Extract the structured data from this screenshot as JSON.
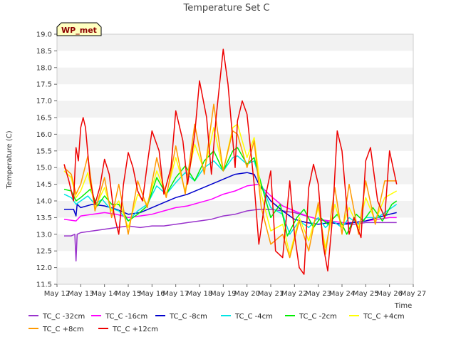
{
  "chart_data": {
    "type": "line",
    "title": "Temperature Set C",
    "xlabel": "Time",
    "ylabel": "Temperature (C)",
    "ylim": [
      11.5,
      19.0
    ],
    "xlim": [
      12,
      27
    ],
    "yticks": [
      11.5,
      12.0,
      12.5,
      13.0,
      13.5,
      14.0,
      14.5,
      15.0,
      15.5,
      16.0,
      16.5,
      17.0,
      17.5,
      18.0,
      18.5,
      19.0
    ],
    "ytick_labels": [
      "11.5",
      "12.0",
      "12.5",
      "13.0",
      "13.5",
      "14.0",
      "14.5",
      "15.0",
      "15.5",
      "16.0",
      "16.5",
      "17.0",
      "17.5",
      "18.0",
      "18.5",
      "19.0"
    ],
    "xticks": [
      12,
      13,
      14,
      15,
      16,
      17,
      18,
      19,
      20,
      21,
      22,
      23,
      24,
      25,
      26,
      27
    ],
    "xtick_labels": [
      "May 12",
      "May 13",
      "May 14",
      "May 15",
      "May 16",
      "May 17",
      "May 18",
      "May 19",
      "May 20",
      "May 21",
      "May 22",
      "May 23",
      "May 24",
      "May 25",
      "May 26",
      "May 27"
    ],
    "grid": "horizontal bands",
    "legend_position": "bottom",
    "annotation": "WP_met",
    "colors": {
      "band": "#f2f2f2",
      "annotation_fill": "#ffffc0",
      "annotation_text": "#8b0000"
    },
    "series": [
      {
        "name": "TC_C -32cm",
        "color": "#9933cc",
        "x": [
          12.3,
          12.6,
          12.75,
          12.8,
          12.85,
          13.0,
          13.5,
          14.0,
          14.5,
          15.0,
          15.5,
          16.0,
          16.5,
          17.0,
          17.5,
          18.0,
          18.5,
          19.0,
          19.5,
          20.0,
          20.5,
          21.0,
          21.5,
          22.0,
          22.5,
          23.0,
          23.5,
          24.0,
          24.5,
          25.0,
          25.5,
          26.0,
          26.3
        ],
        "y": [
          12.95,
          12.95,
          13.0,
          12.2,
          13.0,
          13.05,
          13.1,
          13.15,
          13.2,
          13.25,
          13.2,
          13.25,
          13.25,
          13.3,
          13.35,
          13.4,
          13.45,
          13.55,
          13.6,
          13.7,
          13.75,
          13.75,
          13.7,
          13.65,
          13.55,
          13.45,
          13.35,
          13.3,
          13.3,
          13.35,
          13.35,
          13.35,
          13.35
        ]
      },
      {
        "name": "TC_C -16cm",
        "color": "#ff00ff",
        "x": [
          12.3,
          12.8,
          13.0,
          13.5,
          14.0,
          14.5,
          15.0,
          15.5,
          16.0,
          16.5,
          17.0,
          17.5,
          18.0,
          18.5,
          19.0,
          19.5,
          20.0,
          20.5,
          21.0,
          21.5,
          22.0,
          22.5,
          23.0,
          23.5,
          24.0,
          24.5,
          25.0,
          25.5,
          26.0,
          26.3
        ],
        "y": [
          13.45,
          13.4,
          13.55,
          13.6,
          13.65,
          13.6,
          13.5,
          13.55,
          13.6,
          13.7,
          13.8,
          13.85,
          13.95,
          14.05,
          14.2,
          14.3,
          14.45,
          14.5,
          14.15,
          13.85,
          13.7,
          13.55,
          13.45,
          13.4,
          13.35,
          13.35,
          13.4,
          13.45,
          13.5,
          13.5
        ]
      },
      {
        "name": "TC_C -8cm",
        "color": "#0000cc",
        "x": [
          12.3,
          12.7,
          12.8,
          12.85,
          13.0,
          13.5,
          14.0,
          14.5,
          15.0,
          15.5,
          16.0,
          16.5,
          17.0,
          17.5,
          18.0,
          18.5,
          19.0,
          19.5,
          20.0,
          20.3,
          20.5,
          21.0,
          21.5,
          22.0,
          22.5,
          23.0,
          23.5,
          24.0,
          24.5,
          25.0,
          25.5,
          26.0,
          26.3
        ],
        "y": [
          13.75,
          13.75,
          13.55,
          13.9,
          13.8,
          13.9,
          13.85,
          13.75,
          13.6,
          13.65,
          13.8,
          13.95,
          14.1,
          14.2,
          14.35,
          14.5,
          14.65,
          14.8,
          14.85,
          14.8,
          14.5,
          14.0,
          13.7,
          13.45,
          13.35,
          13.3,
          13.35,
          13.3,
          13.35,
          13.4,
          13.5,
          13.6,
          13.65
        ]
      },
      {
        "name": "TC_C -4cm",
        "color": "#00e5e5",
        "x": [
          12.3,
          12.6,
          12.8,
          13.0,
          13.3,
          13.6,
          13.9,
          14.2,
          14.6,
          15.0,
          15.4,
          15.8,
          16.2,
          16.6,
          17.0,
          17.4,
          17.8,
          18.2,
          18.6,
          19.0,
          19.4,
          19.6,
          20.0,
          20.3,
          20.6,
          21.0,
          21.5,
          21.8,
          22.2,
          22.6,
          23.0,
          23.3,
          23.6,
          24.0,
          24.3,
          24.7,
          25.0,
          25.5,
          25.9,
          26.3
        ],
        "y": [
          14.2,
          14.1,
          13.9,
          14.0,
          14.15,
          13.9,
          14.05,
          13.8,
          13.7,
          13.4,
          13.7,
          13.9,
          14.45,
          14.2,
          14.55,
          14.85,
          14.6,
          15.0,
          15.2,
          14.9,
          15.3,
          15.35,
          15.1,
          15.2,
          14.5,
          13.8,
          13.6,
          13.0,
          13.4,
          13.2,
          13.5,
          13.2,
          13.4,
          13.2,
          13.5,
          13.3,
          13.5,
          13.5,
          13.7,
          13.9
        ]
      },
      {
        "name": "TC_C -2cm",
        "color": "#00ee00",
        "x": [
          12.3,
          12.6,
          12.8,
          13.0,
          13.4,
          13.7,
          14.0,
          14.3,
          14.6,
          15.0,
          15.4,
          15.8,
          16.2,
          16.6,
          17.0,
          17.4,
          17.8,
          18.2,
          18.6,
          19.0,
          19.4,
          19.6,
          20.0,
          20.3,
          20.6,
          21.0,
          21.4,
          21.7,
          22.1,
          22.4,
          22.8,
          23.1,
          23.4,
          23.8,
          24.2,
          24.6,
          24.9,
          25.3,
          25.7,
          26.1,
          26.3
        ],
        "y": [
          14.35,
          14.3,
          14.0,
          14.1,
          14.35,
          13.85,
          14.15,
          13.9,
          13.9,
          13.4,
          13.6,
          13.85,
          14.7,
          14.2,
          14.7,
          15.05,
          14.6,
          15.2,
          15.5,
          14.9,
          15.5,
          15.6,
          15.1,
          15.3,
          14.5,
          13.5,
          13.9,
          12.95,
          13.5,
          13.75,
          13.2,
          13.5,
          13.3,
          13.6,
          13.0,
          13.6,
          13.4,
          13.8,
          13.4,
          13.9,
          14.0
        ]
      },
      {
        "name": "TC_C +4cm",
        "color": "#ffff00",
        "x": [
          12.3,
          12.6,
          12.8,
          13.0,
          13.3,
          13.6,
          14.0,
          14.3,
          14.6,
          15.0,
          15.4,
          15.8,
          16.2,
          16.6,
          17.0,
          17.4,
          17.8,
          18.2,
          18.6,
          19.0,
          19.4,
          19.6,
          20.0,
          20.3,
          20.6,
          21.0,
          21.5,
          21.8,
          22.2,
          22.6,
          23.0,
          23.3,
          23.7,
          24.0,
          24.3,
          24.7,
          25.0,
          25.4,
          25.8,
          26.3
        ],
        "y": [
          14.9,
          14.7,
          14.1,
          14.3,
          14.85,
          13.8,
          14.4,
          13.7,
          14.0,
          13.2,
          14.2,
          13.9,
          14.9,
          14.2,
          15.3,
          14.3,
          15.7,
          14.9,
          16.2,
          14.9,
          16.2,
          16.3,
          15.3,
          15.9,
          14.2,
          13.1,
          13.3,
          12.4,
          13.5,
          12.8,
          13.8,
          12.6,
          13.9,
          13.2,
          13.8,
          13.2,
          14.1,
          13.4,
          14.1,
          14.3
        ]
      },
      {
        "name": "TC_C +8cm",
        "color": "#ff9900",
        "x": [
          12.3,
          12.6,
          12.8,
          13.0,
          13.3,
          13.6,
          14.0,
          14.3,
          14.6,
          15.0,
          15.4,
          15.8,
          16.2,
          16.6,
          17.0,
          17.4,
          17.8,
          18.2,
          18.6,
          19.0,
          19.4,
          19.6,
          20.0,
          20.3,
          20.6,
          21.0,
          21.5,
          21.8,
          22.2,
          22.6,
          23.0,
          23.3,
          23.7,
          24.0,
          24.3,
          24.7,
          25.0,
          25.4,
          25.8,
          26.3
        ],
        "y": [
          15.0,
          14.8,
          14.2,
          14.5,
          15.35,
          13.7,
          14.7,
          13.5,
          14.5,
          13.0,
          14.6,
          13.8,
          15.3,
          14.1,
          15.65,
          14.2,
          16.3,
          14.8,
          16.9,
          14.9,
          16.1,
          16.0,
          15.0,
          15.8,
          13.8,
          12.7,
          13.0,
          12.3,
          13.4,
          12.5,
          13.95,
          12.4,
          14.4,
          13.0,
          14.5,
          13.0,
          14.6,
          13.3,
          14.6,
          14.6
        ]
      },
      {
        "name": "TC_C +12cm",
        "color": "#ee0000",
        "x": [
          12.3,
          12.5,
          12.7,
          12.8,
          12.9,
          13.0,
          13.1,
          13.2,
          13.4,
          13.6,
          13.8,
          14.0,
          14.2,
          14.4,
          14.6,
          14.8,
          15.0,
          15.2,
          15.4,
          15.6,
          15.8,
          16.0,
          16.3,
          16.5,
          16.8,
          17.0,
          17.3,
          17.5,
          17.8,
          18.0,
          18.3,
          18.5,
          18.7,
          19.0,
          19.2,
          19.5,
          19.6,
          19.8,
          20.0,
          20.3,
          20.5,
          20.8,
          21.0,
          21.2,
          21.5,
          21.8,
          22.0,
          22.2,
          22.4,
          22.6,
          22.8,
          23.0,
          23.2,
          23.4,
          23.6,
          23.8,
          24.0,
          24.3,
          24.5,
          24.8,
          25.0,
          25.2,
          25.5,
          25.8,
          26.0,
          26.3
        ],
        "y": [
          15.1,
          14.6,
          14.0,
          15.6,
          15.2,
          16.2,
          16.5,
          16.2,
          14.6,
          13.9,
          14.4,
          15.25,
          14.8,
          13.6,
          13.0,
          14.5,
          15.45,
          15.0,
          14.3,
          14.0,
          15.1,
          16.1,
          15.5,
          14.2,
          15.0,
          16.7,
          15.8,
          14.5,
          16.0,
          17.6,
          16.5,
          14.8,
          16.5,
          18.55,
          17.5,
          15.0,
          16.4,
          17.0,
          16.6,
          14.5,
          12.7,
          14.2,
          14.9,
          12.5,
          12.3,
          14.6,
          13.0,
          12.0,
          11.8,
          14.4,
          15.1,
          14.5,
          12.7,
          11.9,
          13.5,
          16.1,
          15.5,
          13.0,
          13.5,
          12.9,
          15.2,
          15.6,
          14.0,
          13.5,
          15.5,
          14.5
        ]
      }
    ]
  }
}
